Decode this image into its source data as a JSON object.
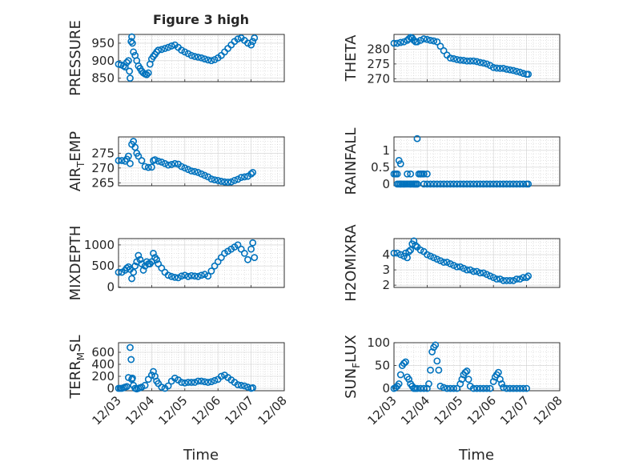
{
  "figure": {
    "title": "Figure 3 high",
    "x_label": "Time",
    "marker_color": "#0072BD",
    "x_tick_labels": [
      "12/03",
      "12/04",
      "12/05",
      "12/06",
      "12/07",
      "12/08"
    ]
  },
  "chart_data": [
    {
      "type": "scatter",
      "ylabel": "PRESSURE",
      "x_domain": [
        "12/03",
        "12/08"
      ],
      "ylim": [
        840,
        975
      ],
      "yticks": [
        850,
        900,
        950
      ],
      "grid": true,
      "x_days": [
        0.0,
        0.08,
        0.15,
        0.2,
        0.25,
        0.3,
        0.33,
        0.35,
        0.38,
        0.4,
        0.42,
        0.45,
        0.5,
        0.55,
        0.6,
        0.65,
        0.7,
        0.75,
        0.8,
        0.85,
        0.9,
        0.95,
        1.0,
        1.05,
        1.1,
        1.15,
        1.2,
        1.3,
        1.4,
        1.5,
        1.6,
        1.7,
        1.8,
        1.9,
        2.0,
        2.1,
        2.2,
        2.3,
        2.4,
        2.5,
        2.6,
        2.7,
        2.8,
        2.9,
        3.0,
        3.1,
        3.2,
        3.3,
        3.4,
        3.5,
        3.6,
        3.7,
        3.8,
        3.9,
        4.0,
        4.05,
        4.1
      ],
      "y": [
        890,
        888,
        885,
        882,
        895,
        900,
        870,
        850,
        955,
        968,
        950,
        925,
        915,
        900,
        885,
        878,
        870,
        865,
        862,
        860,
        865,
        890,
        905,
        912,
        918,
        925,
        930,
        932,
        935,
        938,
        942,
        945,
        938,
        930,
        925,
        920,
        915,
        912,
        910,
        908,
        905,
        902,
        900,
        903,
        908,
        915,
        925,
        935,
        945,
        955,
        962,
        965,
        958,
        950,
        945,
        955,
        965
      ]
    },
    {
      "type": "scatter",
      "ylabel": "THETA",
      "x_domain": [
        "12/03",
        "12/08"
      ],
      "ylim": [
        269,
        285
      ],
      "yticks": [
        270,
        275,
        280
      ],
      "grid": true,
      "x_days": [
        0.0,
        0.1,
        0.2,
        0.3,
        0.4,
        0.45,
        0.5,
        0.55,
        0.6,
        0.65,
        0.7,
        0.8,
        0.9,
        1.0,
        1.1,
        1.2,
        1.3,
        1.4,
        1.5,
        1.6,
        1.7,
        1.8,
        1.9,
        2.0,
        2.1,
        2.2,
        2.3,
        2.4,
        2.5,
        2.6,
        2.7,
        2.8,
        2.9,
        3.0,
        3.1,
        3.2,
        3.3,
        3.4,
        3.5,
        3.6,
        3.7,
        3.8,
        3.9,
        4.0,
        4.05
      ],
      "y": [
        282,
        282,
        282.3,
        282.5,
        283,
        283.5,
        284,
        283.8,
        283,
        282.5,
        282.5,
        283,
        283.5,
        283.3,
        283,
        282.8,
        282.5,
        281,
        279.5,
        278,
        277,
        276.8,
        276.5,
        276.3,
        276.2,
        276,
        276,
        276,
        275.8,
        275.5,
        275.3,
        275,
        274.5,
        273.8,
        273.6,
        273.5,
        273.5,
        273.2,
        273,
        272.8,
        272.5,
        272.2,
        271.8,
        271.5,
        271.5
      ]
    },
    {
      "type": "scatter",
      "ylabel": "AIR_TEMP",
      "x_domain": [
        "12/03",
        "12/08"
      ],
      "ylim": [
        264,
        280.5
      ],
      "yticks": [
        265,
        270,
        275
      ],
      "grid": true,
      "x_days": [
        0.0,
        0.1,
        0.2,
        0.25,
        0.3,
        0.35,
        0.4,
        0.45,
        0.5,
        0.55,
        0.6,
        0.7,
        0.8,
        0.9,
        1.0,
        1.05,
        1.1,
        1.2,
        1.3,
        1.4,
        1.5,
        1.6,
        1.7,
        1.8,
        1.9,
        2.0,
        2.1,
        2.2,
        2.3,
        2.4,
        2.5,
        2.6,
        2.7,
        2.8,
        2.9,
        3.0,
        3.1,
        3.2,
        3.3,
        3.4,
        3.5,
        3.6,
        3.7,
        3.8,
        3.9,
        4.0,
        4.05
      ],
      "y": [
        272.5,
        272.5,
        272.3,
        273,
        274,
        271.5,
        278,
        279,
        277,
        275,
        274,
        272.5,
        270.5,
        270.2,
        270.3,
        272.5,
        272.8,
        272.3,
        272,
        271.5,
        271,
        271.2,
        271.5,
        271.3,
        270.5,
        270,
        269.5,
        269,
        268.8,
        268.5,
        268,
        267.5,
        267,
        266.3,
        266,
        265.8,
        265.5,
        265.3,
        265.2,
        265.3,
        265.8,
        266.2,
        266.8,
        267,
        267.2,
        268,
        268.5
      ]
    },
    {
      "type": "scatter",
      "ylabel": "RAINFALL",
      "x_domain": [
        "12/03",
        "12/08"
      ],
      "ylim": [
        -0.05,
        1.4
      ],
      "yticks": [
        0,
        0.5,
        1
      ],
      "grid": true,
      "x_days": [
        0.0,
        0.05,
        0.1,
        0.15,
        0.2,
        0.25,
        0.3,
        0.35,
        0.4,
        0.45,
        0.5,
        0.55,
        0.6,
        0.65,
        0.7,
        0.75,
        0.8,
        0.85,
        0.9,
        1.0,
        1.2,
        1.4,
        1.6,
        1.8,
        2.0,
        2.2,
        2.4,
        2.6,
        2.8,
        3.0,
        3.2,
        3.4,
        3.6,
        3.8,
        4.0,
        4.05,
        0.15,
        0.2,
        0.4,
        0.5,
        0.6,
        0.65,
        0.7,
        0.8,
        0.9,
        1.0,
        0.1,
        0.2,
        0.3,
        0.5,
        0.7,
        1.1,
        1.3,
        1.5,
        1.7,
        1.9,
        2.1,
        2.3,
        2.5,
        2.7,
        2.9,
        3.1,
        3.3,
        3.5,
        3.7,
        3.9
      ],
      "y": [
        0.3,
        0.3,
        0.3,
        0.7,
        0.6,
        0,
        0,
        0,
        0,
        0,
        0,
        0,
        0,
        0,
        1.35,
        0.3,
        0.3,
        0.3,
        0,
        0,
        0,
        0,
        0,
        0,
        0,
        0,
        0,
        0,
        0,
        0,
        0,
        0,
        0,
        0,
        0,
        0,
        0,
        0,
        0.3,
        0.3,
        0,
        0,
        0,
        0.3,
        0.3,
        0.3,
        0,
        0,
        0,
        0,
        0,
        0,
        0,
        0,
        0,
        0,
        0,
        0,
        0,
        0,
        0,
        0,
        0,
        0,
        0,
        0
      ]
    },
    {
      "type": "scatter",
      "ylabel": "MIXDEPTH",
      "x_domain": [
        "12/03",
        "12/08"
      ],
      "ylim": [
        -10,
        1150
      ],
      "yticks": [
        0,
        500,
        1000
      ],
      "grid": true,
      "x_days": [
        0.0,
        0.1,
        0.2,
        0.25,
        0.3,
        0.35,
        0.4,
        0.45,
        0.5,
        0.55,
        0.6,
        0.65,
        0.7,
        0.75,
        0.8,
        0.85,
        0.9,
        0.95,
        1.0,
        1.05,
        1.1,
        1.15,
        1.2,
        1.3,
        1.4,
        1.5,
        1.6,
        1.7,
        1.8,
        1.9,
        2.0,
        2.1,
        2.2,
        2.3,
        2.4,
        2.5,
        2.6,
        2.7,
        2.8,
        2.9,
        3.0,
        3.1,
        3.2,
        3.3,
        3.4,
        3.5,
        3.6,
        3.7,
        3.8,
        3.9,
        4.0,
        4.05,
        4.1
      ],
      "y": [
        350,
        350,
        400,
        450,
        480,
        420,
        200,
        350,
        500,
        600,
        750,
        650,
        550,
        400,
        500,
        600,
        550,
        550,
        600,
        800,
        700,
        650,
        550,
        450,
        350,
        280,
        250,
        230,
        220,
        260,
        280,
        250,
        270,
        260,
        250,
        280,
        300,
        260,
        380,
        500,
        600,
        700,
        800,
        850,
        900,
        950,
        1000,
        900,
        800,
        650,
        900,
        1050,
        700
      ]
    },
    {
      "type": "scatter",
      "ylabel": "H2OMIXRA",
      "x_domain": [
        "12/03",
        "12/08"
      ],
      "ylim": [
        1.85,
        5.05
      ],
      "yticks": [
        2,
        3,
        4
      ],
      "grid": true,
      "x_days": [
        0.0,
        0.1,
        0.2,
        0.3,
        0.35,
        0.4,
        0.45,
        0.5,
        0.55,
        0.6,
        0.65,
        0.7,
        0.8,
        0.9,
        1.0,
        1.1,
        1.2,
        1.3,
        1.4,
        1.5,
        1.6,
        1.7,
        1.8,
        1.9,
        2.0,
        2.1,
        2.2,
        2.3,
        2.4,
        2.5,
        2.6,
        2.7,
        2.8,
        2.9,
        3.0,
        3.1,
        3.2,
        3.3,
        3.4,
        3.5,
        3.6,
        3.7,
        3.8,
        3.9,
        4.0,
        4.05
      ],
      "y": [
        4.1,
        4.1,
        4.0,
        3.9,
        4.1,
        3.8,
        4.2,
        4.3,
        4.7,
        4.9,
        4.6,
        4.5,
        4.3,
        4.2,
        4.0,
        3.9,
        3.8,
        3.7,
        3.6,
        3.5,
        3.5,
        3.4,
        3.3,
        3.2,
        3.2,
        3.1,
        3.0,
        3.0,
        2.9,
        2.9,
        2.8,
        2.8,
        2.7,
        2.6,
        2.5,
        2.4,
        2.4,
        2.3,
        2.3,
        2.3,
        2.3,
        2.4,
        2.4,
        2.5,
        2.5,
        2.6
      ]
    },
    {
      "type": "scatter",
      "ylabel": "TERR_MSL",
      "x_domain": [
        "12/03",
        "12/08"
      ],
      "ylim": [
        -40,
        760
      ],
      "yticks": [
        0,
        200,
        400,
        600
      ],
      "grid": true,
      "x_days": [
        0.0,
        0.05,
        0.1,
        0.15,
        0.2,
        0.25,
        0.3,
        0.35,
        0.38,
        0.4,
        0.42,
        0.45,
        0.5,
        0.55,
        0.6,
        0.65,
        0.7,
        0.8,
        0.9,
        1.0,
        1.05,
        1.1,
        1.15,
        1.2,
        1.3,
        1.4,
        1.5,
        1.6,
        1.7,
        1.8,
        1.9,
        2.0,
        2.1,
        2.2,
        2.3,
        2.4,
        2.5,
        2.6,
        2.7,
        2.8,
        2.9,
        3.0,
        3.1,
        3.2,
        3.3,
        3.4,
        3.5,
        3.6,
        3.7,
        3.8,
        3.9,
        4.0,
        4.05
      ],
      "y": [
        0,
        0,
        0,
        10,
        20,
        30,
        180,
        680,
        480,
        150,
        170,
        50,
        0,
        -10,
        0,
        10,
        20,
        50,
        150,
        220,
        280,
        200,
        120,
        80,
        20,
        0,
        40,
        120,
        170,
        140,
        100,
        90,
        100,
        100,
        100,
        120,
        120,
        110,
        100,
        110,
        130,
        150,
        200,
        220,
        180,
        140,
        100,
        60,
        50,
        40,
        20,
        0,
        10
      ]
    },
    {
      "type": "scatter",
      "ylabel": "SUN_FLUX",
      "x_domain": [
        "12/03",
        "12/08"
      ],
      "ylim": [
        -5,
        100
      ],
      "yticks": [
        0,
        50,
        100
      ],
      "grid": true,
      "x_days": [
        0.0,
        0.05,
        0.1,
        0.15,
        0.2,
        0.25,
        0.3,
        0.35,
        0.4,
        0.45,
        0.5,
        0.55,
        0.6,
        0.65,
        0.7,
        0.8,
        0.9,
        1.0,
        1.05,
        1.1,
        1.15,
        1.2,
        1.25,
        1.3,
        1.35,
        1.4,
        1.5,
        1.6,
        1.7,
        1.8,
        1.9,
        2.0,
        2.05,
        2.1,
        2.15,
        2.2,
        2.25,
        2.3,
        2.4,
        2.5,
        2.6,
        2.7,
        2.8,
        2.9,
        3.0,
        3.05,
        3.1,
        3.15,
        3.2,
        3.25,
        3.3,
        3.4,
        3.5,
        3.6,
        3.7,
        3.8,
        3.9,
        4.0
      ],
      "y": [
        0,
        2,
        5,
        10,
        30,
        50,
        55,
        58,
        25,
        20,
        10,
        5,
        0,
        0,
        0,
        0,
        0,
        0,
        10,
        40,
        80,
        90,
        95,
        60,
        40,
        5,
        2,
        0,
        0,
        0,
        0,
        10,
        20,
        30,
        35,
        38,
        20,
        5,
        0,
        0,
        0,
        0,
        0,
        0,
        15,
        25,
        30,
        35,
        20,
        10,
        2,
        0,
        0,
        0,
        0,
        0,
        0,
        0
      ]
    }
  ]
}
